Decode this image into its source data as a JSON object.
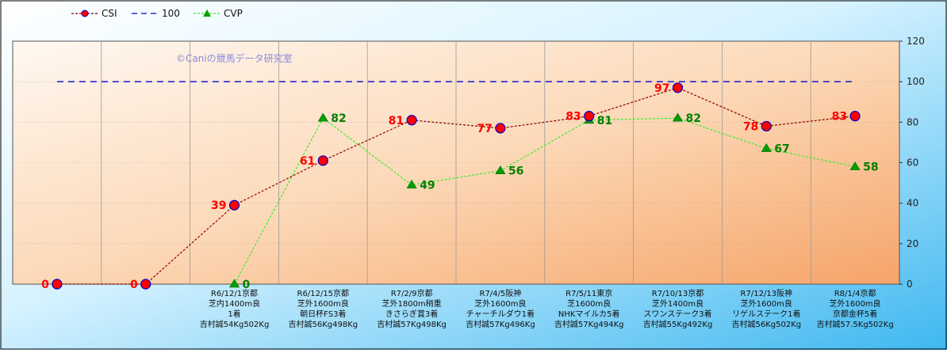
{
  "chart_data": {
    "type": "line",
    "categories": [
      [
        "",
        "",
        "",
        ""
      ],
      [
        "",
        "",
        "",
        ""
      ],
      [
        "R6/12/1京都",
        "芝内1400m良",
        "1着",
        "吉村誠54Kg502Kg"
      ],
      [
        "R6/12/15京都",
        "芝外1600m良",
        "朝日杯FS3着",
        "吉村誠56Kg498Kg"
      ],
      [
        "R7/2/9京都",
        "芝外1800m稍重",
        "きさらぎ賞3着",
        "吉村誠57Kg498Kg"
      ],
      [
        "R7/4/5阪神",
        "芝外1600m良",
        "チャーチルダウ1着",
        "吉村誠57Kg496Kg"
      ],
      [
        "R7/5/11東京",
        "芝1600m良",
        "NHKマイルカ5着",
        "吉村誠57Kg494Kg"
      ],
      [
        "R7/10/13京都",
        "芝外1400m良",
        "スワンステーク3着",
        "吉村誠55Kg492Kg"
      ],
      [
        "R7/12/13阪神",
        "芝外1600m良",
        "リゲルステーク1着",
        "吉村誠56Kg502Kg"
      ],
      [
        "R8/1/4京都",
        "芝外1600m良",
        "京都金杯5着",
        "吉村誠57.5Kg502Kg"
      ]
    ],
    "series": [
      {
        "name": "CSI",
        "color": "#8b0000",
        "marker_color": "#ff0000",
        "values": [
          0,
          0,
          39,
          61,
          81,
          77,
          83,
          97,
          78,
          83
        ],
        "labels": [
          "0",
          "0",
          "39",
          "61",
          "81",
          "77",
          "83",
          "97",
          "78",
          "83"
        ]
      },
      {
        "name": "100",
        "color": "#0000cd",
        "values": [
          100,
          100,
          100,
          100,
          100,
          100,
          100,
          100,
          100,
          100
        ]
      },
      {
        "name": "CVP",
        "color": "#33ee33",
        "marker_color": "#00a000",
        "values": [
          null,
          null,
          0,
          82,
          49,
          56,
          81,
          82,
          67,
          58
        ],
        "labels": [
          "",
          "",
          "0",
          "82",
          "49",
          "56",
          "81",
          "82",
          "67",
          "58"
        ]
      }
    ],
    "ylim": [
      0,
      120
    ],
    "yticks": [
      0,
      20,
      40,
      60,
      80,
      100,
      120
    ],
    "grid": true,
    "legend": "top-left",
    "watermark": "©Caniの競馬データ研究室"
  }
}
